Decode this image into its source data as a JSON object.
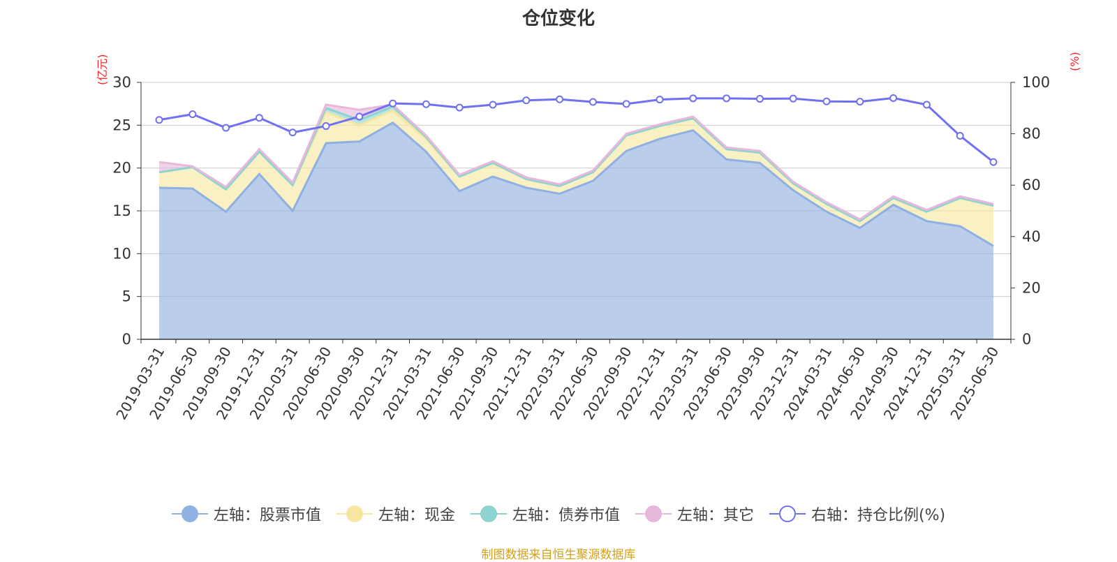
{
  "title": "仓位变化",
  "left_unit": "(亿元)",
  "right_unit": "(%)",
  "source": "制图数据来自恒生聚源数据库",
  "colors": {
    "stock": "#8fb0e0",
    "cash": "#f6e6a0",
    "bond": "#8fd3d0",
    "other": "#e8b8dc",
    "ratio": "#7070f0",
    "axis": "#333333",
    "grid": "#cccccc"
  },
  "chart_data": {
    "type": "area",
    "title": "仓位变化",
    "categories": [
      "2019-03-31",
      "2019-06-30",
      "2019-09-30",
      "2019-12-31",
      "2020-03-31",
      "2020-06-30",
      "2020-09-30",
      "2020-12-31",
      "2021-03-31",
      "2021-06-30",
      "2021-09-30",
      "2021-12-31",
      "2022-03-31",
      "2022-06-30",
      "2022-09-30",
      "2022-12-31",
      "2023-03-31",
      "2023-06-30",
      "2023-09-30",
      "2023-12-31",
      "2024-03-31",
      "2024-06-30",
      "2024-09-30",
      "2024-12-31",
      "2025-03-31",
      "2025-06-30"
    ],
    "y_left": {
      "unit": "(亿元)",
      "min": 0,
      "max": 30,
      "ticks": [
        0,
        5,
        10,
        15,
        20,
        25,
        30
      ]
    },
    "y_right": {
      "unit": "(%)",
      "min": 0,
      "max": 100,
      "ticks": [
        0,
        20,
        40,
        60,
        80,
        100
      ]
    },
    "series": [
      {
        "name": "左轴：股票市值",
        "axis": "left",
        "kind": "stacked-area",
        "color_key": "stock",
        "values": [
          17.7,
          17.6,
          14.9,
          19.3,
          15.0,
          22.9,
          23.1,
          25.3,
          21.9,
          17.3,
          19.0,
          17.7,
          17.0,
          18.5,
          22.0,
          23.4,
          24.4,
          21.0,
          20.6,
          17.4,
          14.9,
          13.0,
          15.7,
          13.8,
          13.2,
          10.9
        ]
      },
      {
        "name": "左轴：现金",
        "axis": "left",
        "kind": "stacked-area",
        "color_key": "cash",
        "values": [
          1.8,
          2.5,
          2.6,
          2.6,
          3.0,
          3.6,
          1.9,
          1.4,
          1.5,
          1.7,
          1.6,
          1.0,
          0.9,
          1.0,
          1.8,
          1.5,
          1.4,
          1.2,
          1.2,
          0.8,
          0.9,
          0.8,
          0.8,
          1.1,
          3.3,
          4.7
        ]
      },
      {
        "name": "左轴：债券市值",
        "axis": "left",
        "kind": "stacked-area",
        "color_key": "bond",
        "values": [
          0,
          0,
          0,
          0,
          0,
          0.5,
          0.6,
          0.5,
          0.2,
          0,
          0,
          0,
          0,
          0,
          0,
          0,
          0,
          0,
          0,
          0,
          0,
          0,
          0,
          0,
          0,
          0
        ]
      },
      {
        "name": "左轴：其它",
        "axis": "left",
        "kind": "stacked-area",
        "color_key": "other",
        "values": [
          1.2,
          0.1,
          0.3,
          0.3,
          0.3,
          0.4,
          1.2,
          0.2,
          0.2,
          0.2,
          0.2,
          0.2,
          0.2,
          0.2,
          0.2,
          0.2,
          0.2,
          0.2,
          0.2,
          0.2,
          0.2,
          0.2,
          0.2,
          0.2,
          0.2,
          0.2
        ]
      },
      {
        "name": "右轴：持仓比例(%)",
        "axis": "right",
        "kind": "line",
        "color_key": "ratio",
        "values": [
          85.4,
          87.6,
          82.3,
          86.2,
          80.5,
          83.0,
          86.7,
          91.8,
          91.5,
          90.2,
          91.3,
          93.0,
          93.4,
          92.4,
          91.6,
          93.3,
          93.8,
          93.8,
          93.6,
          93.7,
          92.6,
          92.5,
          93.9,
          91.3,
          79.2,
          69.0
        ]
      }
    ]
  }
}
